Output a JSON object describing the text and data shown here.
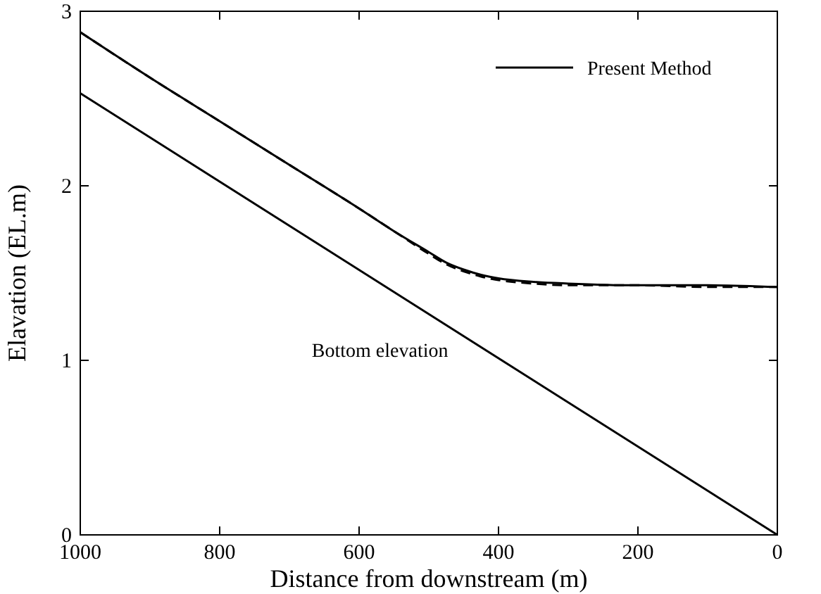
{
  "chart_data": {
    "type": "line",
    "xlabel": "Distance from downstream (m)",
    "ylabel": "Elavation (EL.m)",
    "xlim": [
      1000,
      0
    ],
    "xticks": [
      1000,
      800,
      600,
      400,
      200,
      0
    ],
    "ylim": [
      0,
      3
    ],
    "yticks": [
      0,
      1,
      2,
      3
    ],
    "legend": "top right",
    "grid": false,
    "series": [
      {
        "name": "Present Method",
        "color": "#000000",
        "line_style": "solid",
        "x": [
          1000,
          900,
          800,
          700,
          600,
          550,
          500,
          475,
          450,
          425,
          400,
          350,
          300,
          200,
          100,
          0
        ],
        "values": [
          2.88,
          2.62,
          2.37,
          2.12,
          1.87,
          1.74,
          1.62,
          1.56,
          1.52,
          1.49,
          1.47,
          1.45,
          1.44,
          1.43,
          1.43,
          1.42
        ]
      },
      {
        "color": "#000000",
        "line_style": "dashed",
        "x": [
          1000,
          900,
          800,
          700,
          600,
          550,
          500,
          475,
          450,
          425,
          400,
          350,
          300,
          200,
          100,
          0
        ],
        "values": [
          2.88,
          2.62,
          2.37,
          2.12,
          1.87,
          1.74,
          1.61,
          1.55,
          1.51,
          1.48,
          1.46,
          1.44,
          1.43,
          1.43,
          1.42,
          1.42
        ]
      },
      {
        "color": "#000000",
        "line_style": "solid",
        "x": [
          1000,
          0
        ],
        "values": [
          2.53,
          0
        ]
      }
    ],
    "annotations": [
      "Bottom elevation"
    ]
  }
}
